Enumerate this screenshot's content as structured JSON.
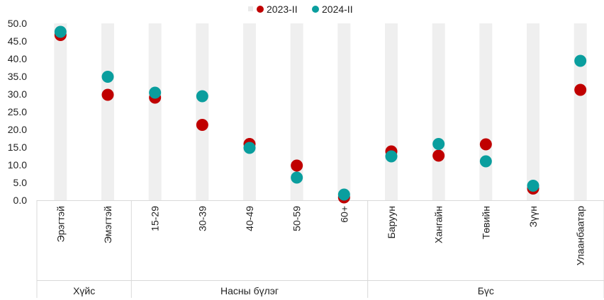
{
  "chart_data": {
    "type": "scatter",
    "categories": [
      "Эрэгтэй",
      "Эмэгтэй",
      "15-29",
      "30-39",
      "40-49",
      "50-59",
      "60+",
      "Баруун",
      "Хангайн",
      "Төвийн",
      "Зүүн",
      "Улаанбаатар"
    ],
    "groups": [
      {
        "label": "Хүйс",
        "categories": [
          "Эрэгтэй",
          "Эмэгтэй"
        ]
      },
      {
        "label": "Насны бүлэг",
        "categories": [
          "15-29",
          "30-39",
          "40-49",
          "50-59",
          "60+"
        ]
      },
      {
        "label": "Бүс",
        "categories": [
          "Баруун",
          "Хангайн",
          "Төвийн",
          "Зүүн",
          "Улаанбаатар"
        ]
      }
    ],
    "series": [
      {
        "name": "2023-II",
        "color": "#c00000",
        "values": [
          46.7,
          29.8,
          29.0,
          21.3,
          15.9,
          9.8,
          0.8,
          13.8,
          12.6,
          15.8,
          3.3,
          31.2
        ]
      },
      {
        "name": "2024-II",
        "color": "#0a9e9e",
        "values": [
          47.6,
          34.9,
          30.4,
          29.4,
          14.8,
          6.4,
          1.6,
          12.4,
          15.9,
          11.0,
          4.1,
          39.4
        ]
      }
    ],
    "yticks": [
      "50.0",
      "45.0",
      "40.0",
      "35.0",
      "30.0",
      "25.0",
      "20.0",
      "15.0",
      "10.0",
      "5.0",
      "0.0"
    ],
    "ylim": [
      0,
      50
    ],
    "legend_position": "top-center",
    "grid": false,
    "band_color": "#efefef"
  }
}
